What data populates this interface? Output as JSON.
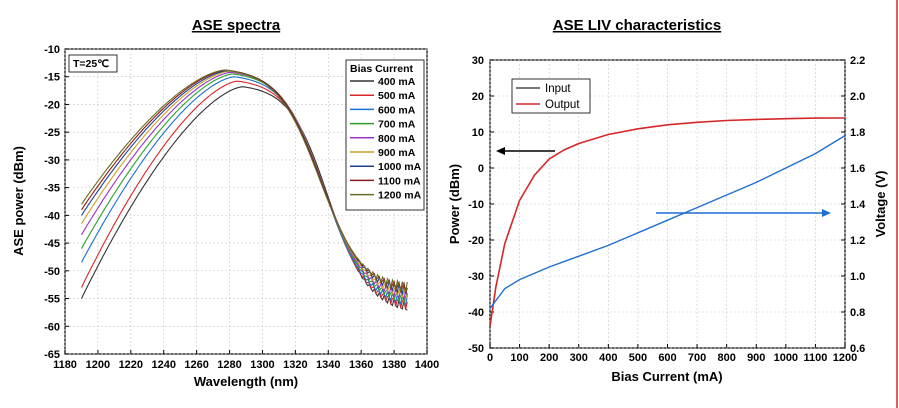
{
  "chart_data": [
    {
      "type": "line",
      "title": "ASE spectra",
      "xlabel": "Wavelength (nm)",
      "ylabel": "ASE power (dBm)",
      "xlim": [
        1180,
        1400
      ],
      "ylim": [
        -65,
        -10
      ],
      "xticks": [
        1180,
        1200,
        1220,
        1240,
        1260,
        1280,
        1300,
        1320,
        1340,
        1360,
        1380,
        1400
      ],
      "yticks": [
        -65,
        -60,
        -55,
        -50,
        -45,
        -40,
        -35,
        -30,
        -25,
        -20,
        -15,
        -10
      ],
      "grid": true,
      "annotation": "T=25℃",
      "legend": {
        "title": "Bias Current",
        "placement": "top-right"
      },
      "x_range": [
        1190,
        1388
      ],
      "series": [
        {
          "name": "400 mA",
          "color": "#333333",
          "start": -55.0,
          "peak": -16.8,
          "peak_x": 1288,
          "end": -56.5
        },
        {
          "name": "500 mA",
          "color": "#d62728",
          "start": -53.0,
          "peak": -15.8,
          "peak_x": 1285,
          "end": -56.0
        },
        {
          "name": "600 mA",
          "color": "#1f6fd1",
          "start": -48.5,
          "peak": -15.0,
          "peak_x": 1283,
          "end": -55.5
        },
        {
          "name": "700 mA",
          "color": "#2ca02c",
          "start": -46.0,
          "peak": -14.5,
          "peak_x": 1282,
          "end": -55.0
        },
        {
          "name": "800 mA",
          "color": "#9b30c8",
          "start": -43.5,
          "peak": -14.2,
          "peak_x": 1281,
          "end": -54.5
        },
        {
          "name": "900 mA",
          "color": "#c9a227",
          "start": -41.5,
          "peak": -14.0,
          "peak_x": 1280,
          "end": -54.0
        },
        {
          "name": "1000 mA",
          "color": "#1f3f8f",
          "start": -40.0,
          "peak": -13.9,
          "peak_x": 1279,
          "end": -53.5
        },
        {
          "name": "1100 mA",
          "color": "#8b1a1a",
          "start": -39.0,
          "peak": -13.8,
          "peak_x": 1278,
          "end": -53.2
        },
        {
          "name": "1200 mA",
          "color": "#6b6b20",
          "start": -38.0,
          "peak": -13.8,
          "peak_x": 1277,
          "end": -53.0
        }
      ]
    },
    {
      "type": "line",
      "title": "ASE LIV characteristics",
      "xlabel": "Bias Current (mA)",
      "ylabel": "Power (dBm)",
      "ylabel_right": "Voltage (V)",
      "xlim": [
        0,
        1200
      ],
      "ylim": [
        -50,
        30
      ],
      "ylim_right": [
        0.6,
        2.2
      ],
      "xticks": [
        0,
        100,
        200,
        300,
        400,
        500,
        600,
        700,
        800,
        900,
        1000,
        1100,
        1200
      ],
      "yticks": [
        -50,
        -40,
        -30,
        -20,
        -10,
        0,
        10,
        20,
        30
      ],
      "yticks_right": [
        "0.6",
        "0.8",
        "1.0",
        "1.2",
        "1.4",
        "1.6",
        "1.8",
        "2.0",
        "2.2"
      ],
      "grid": true,
      "legend": {
        "placement": "top-left"
      },
      "series": [
        {
          "name": "Input",
          "color": "#4a4a4a",
          "axis": "right",
          "x": [
            0,
            20,
            50,
            100,
            200,
            300,
            400,
            500,
            600,
            700,
            800,
            900,
            1000,
            1100,
            1200
          ],
          "values": [
            0.78,
            0.82,
            0.86,
            0.89,
            0.94,
            0.99,
            1.04,
            1.1,
            1.16,
            1.23,
            1.3,
            1.37,
            1.44,
            1.51,
            1.78
          ]
        },
        {
          "name": "Output",
          "color": "#d62728",
          "axis": "left",
          "x": [
            0,
            20,
            50,
            100,
            150,
            200,
            250,
            300,
            400,
            500,
            600,
            700,
            800,
            900,
            1000,
            1100,
            1200
          ],
          "values": [
            -44,
            -33,
            -21,
            -9,
            -2,
            2.5,
            5,
            6.8,
            9.3,
            10.9,
            12.0,
            12.7,
            13.2,
            13.5,
            13.7,
            13.85,
            13.9
          ]
        }
      ],
      "voltage_line": {
        "x": [
          0,
          50,
          100,
          200,
          300,
          400,
          500,
          600,
          700,
          800,
          900,
          1000,
          1100,
          1200
        ],
        "values": [
          0.82,
          0.93,
          0.98,
          1.05,
          1.11,
          1.17,
          1.24,
          1.31,
          1.38,
          1.45,
          1.52,
          1.6,
          1.68,
          1.78
        ]
      }
    }
  ]
}
